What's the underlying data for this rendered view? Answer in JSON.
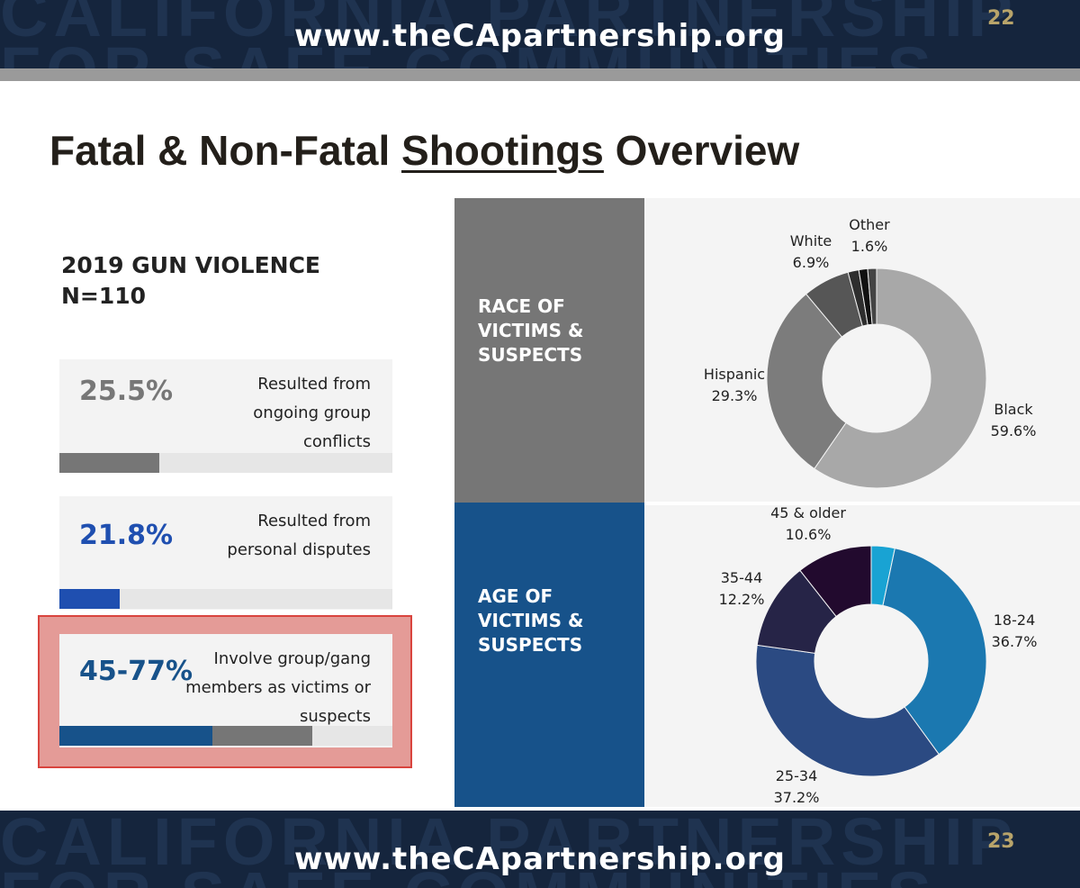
{
  "header": {
    "url": "www.theCApartnership.org",
    "page_number": "22",
    "watermark_line1": "CALIFORNIA PARTNERSHIP",
    "watermark_line2": "FOR SAFE COMMUNITIES"
  },
  "footer": {
    "url": "www.theCApartnership.org",
    "page_number": "23",
    "watermark_line1": "CALIFORNIA PARTNERSHIP",
    "watermark_line2": "FOR SAFE COMMUNITIES"
  },
  "title": {
    "before": "Fatal & Non-Fatal ",
    "underlined": "Shootings",
    "after": " Overview"
  },
  "stats": {
    "heading_line1": "2019 GUN VIOLENCE",
    "heading_line2": "N=110",
    "cards": [
      {
        "pct": "25.5%",
        "desc": [
          "Resulted from",
          "ongoing group",
          "conflicts"
        ],
        "bar": [
          {
            "fraction": 0.3,
            "color": "#767676"
          }
        ]
      },
      {
        "pct": "21.8%",
        "desc": [
          "Resulted from",
          "personal disputes"
        ],
        "bar": [
          {
            "fraction": 0.18,
            "color": "#1f4fb0"
          }
        ]
      },
      {
        "pct": "45-77%",
        "desc": [
          "Involve group/gang",
          "members as victims or",
          "suspects"
        ],
        "bar": [
          {
            "fraction": 0.46,
            "color": "#17528a"
          },
          {
            "fraction": 0.3,
            "color": "#767676"
          }
        ]
      }
    ]
  },
  "panels": {
    "race_label": [
      "RACE OF",
      "VICTIMS &",
      "SUSPECTS"
    ],
    "age_label": [
      "AGE OF",
      "VICTIMS &",
      "SUSPECTS"
    ]
  },
  "chart_data": [
    {
      "type": "pie",
      "title": "RACE OF VICTIMS & SUSPECTS",
      "donut": true,
      "categories": [
        "Black",
        "Hispanic",
        "White",
        "Other"
      ],
      "values": [
        59.6,
        29.3,
        6.9,
        1.6
      ],
      "value_labels": [
        "59.6%",
        "29.3%",
        "6.9%",
        "1.6%"
      ],
      "colors": [
        "#a8a8a8",
        "#7c7c7c",
        "#565656",
        "#2e2e2e"
      ],
      "unlabeled_slices": [
        {
          "value": 1.3,
          "color": "#111111"
        },
        {
          "value": 1.3,
          "color": "#444444"
        }
      ]
    },
    {
      "type": "pie",
      "title": "AGE OF VICTIMS & SUSPECTS",
      "donut": true,
      "categories": [
        "18-24",
        "25-34",
        "35-44",
        "45 & older"
      ],
      "values": [
        36.7,
        37.2,
        12.2,
        10.6
      ],
      "value_labels": [
        "36.7%",
        "37.2%",
        "12.2%",
        "10.6%"
      ],
      "colors": [
        "#1b78b0",
        "#2b4a82",
        "#262447",
        "#220a2e"
      ],
      "unlabeled_slices": [
        {
          "value": 3.3,
          "color": "#19a3d3"
        }
      ]
    }
  ]
}
